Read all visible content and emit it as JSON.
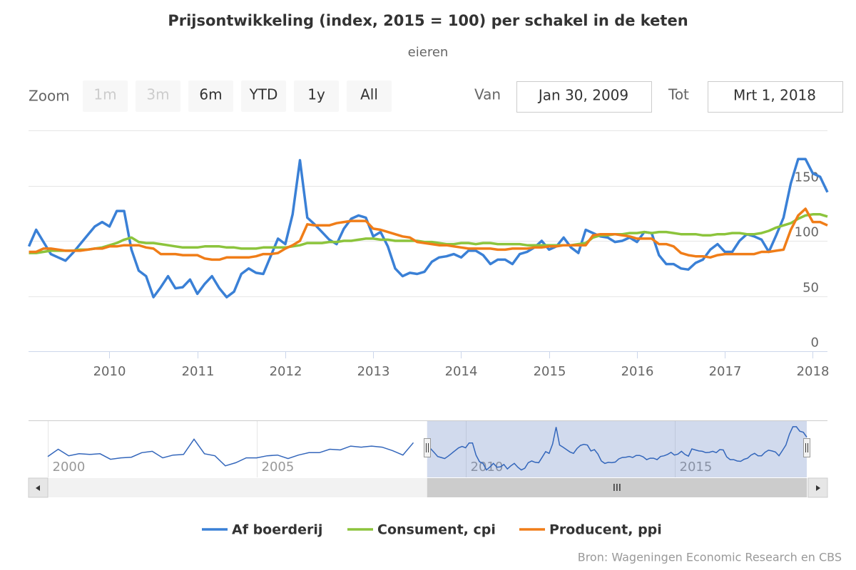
{
  "chart_data": {
    "type": "line",
    "title": "Prijsontwikkeling (index, 2015 = 100) per schakel in de keten",
    "subtitle": "eieren",
    "range_selector": {
      "zoom_label": "Zoom",
      "buttons": [
        {
          "text": "1m",
          "enabled": false
        },
        {
          "text": "3m",
          "enabled": false
        },
        {
          "text": "6m",
          "enabled": true
        },
        {
          "text": "YTD",
          "enabled": true
        },
        {
          "text": "1y",
          "enabled": true
        },
        {
          "text": "All",
          "enabled": true
        }
      ],
      "from_label": "Van",
      "from": "Jan 30, 2009",
      "to_label": "Tot",
      "to": "Mrt 1, 2018"
    },
    "x": [
      "2009-02",
      "2009-03",
      "2009-04",
      "2009-05",
      "2009-06",
      "2009-07",
      "2009-08",
      "2009-09",
      "2009-10",
      "2009-11",
      "2009-12",
      "2010-01",
      "2010-02",
      "2010-03",
      "2010-04",
      "2010-05",
      "2010-06",
      "2010-07",
      "2010-08",
      "2010-09",
      "2010-10",
      "2010-11",
      "2010-12",
      "2011-01",
      "2011-02",
      "2011-03",
      "2011-04",
      "2011-05",
      "2011-06",
      "2011-07",
      "2011-08",
      "2011-09",
      "2011-10",
      "2011-11",
      "2011-12",
      "2012-01",
      "2012-02",
      "2012-03",
      "2012-04",
      "2012-05",
      "2012-06",
      "2012-07",
      "2012-08",
      "2012-09",
      "2012-10",
      "2012-11",
      "2012-12",
      "2013-01",
      "2013-02",
      "2013-03",
      "2013-04",
      "2013-05",
      "2013-06",
      "2013-07",
      "2013-08",
      "2013-09",
      "2013-10",
      "2013-11",
      "2013-12",
      "2014-01",
      "2014-02",
      "2014-03",
      "2014-04",
      "2014-05",
      "2014-06",
      "2014-07",
      "2014-08",
      "2014-09",
      "2014-10",
      "2014-11",
      "2014-12",
      "2015-01",
      "2015-02",
      "2015-03",
      "2015-04",
      "2015-05",
      "2015-06",
      "2015-07",
      "2015-08",
      "2015-09",
      "2015-10",
      "2015-11",
      "2015-12",
      "2016-01",
      "2016-02",
      "2016-03",
      "2016-04",
      "2016-05",
      "2016-06",
      "2016-07",
      "2016-08",
      "2016-09",
      "2016-10",
      "2016-11",
      "2016-12",
      "2017-01",
      "2017-02",
      "2017-03",
      "2017-04",
      "2017-05",
      "2017-06",
      "2017-07",
      "2017-08",
      "2017-09",
      "2017-10",
      "2017-11",
      "2017-12",
      "2018-01",
      "2018-02",
      "2018-03"
    ],
    "series": [
      {
        "name": "Af boerderij",
        "color": "#3a80d6",
        "values": [
          95,
          110,
          99,
          88,
          85,
          82,
          89,
          97,
          105,
          113,
          117,
          113,
          127,
          127,
          92,
          73,
          68,
          49,
          58,
          68,
          57,
          58,
          65,
          52,
          61,
          68,
          57,
          49,
          54,
          70,
          75,
          71,
          70,
          86,
          102,
          97,
          124,
          173,
          121,
          115,
          108,
          101,
          97,
          111,
          120,
          123,
          121,
          104,
          108,
          95,
          75,
          68,
          71,
          70,
          72,
          81,
          85,
          86,
          88,
          85,
          91,
          91,
          87,
          79,
          83,
          83,
          79,
          88,
          90,
          94,
          100,
          92,
          95,
          103,
          94,
          89,
          110,
          107,
          104,
          103,
          99,
          100,
          103,
          99,
          108,
          107,
          87,
          79,
          79,
          75,
          74,
          80,
          83,
          92,
          97,
          90,
          90,
          100,
          106,
          104,
          101,
          90,
          105,
          121,
          152,
          174,
          174,
          161,
          158,
          144
        ]
      },
      {
        "name": "Consument, cpi",
        "color": "#8cc43c",
        "values": [
          89,
          89,
          90,
          91,
          91,
          91,
          91,
          92,
          92,
          93,
          94,
          96,
          98,
          101,
          103,
          99,
          98,
          98,
          97,
          96,
          95,
          94,
          94,
          94,
          95,
          95,
          95,
          94,
          94,
          93,
          93,
          93,
          94,
          94,
          94,
          94,
          95,
          96,
          98,
          98,
          98,
          99,
          99,
          100,
          100,
          101,
          102,
          102,
          101,
          101,
          100,
          100,
          100,
          100,
          99,
          99,
          98,
          97,
          97,
          98,
          98,
          97,
          98,
          98,
          97,
          97,
          97,
          97,
          96,
          96,
          96,
          96,
          96,
          96,
          96,
          97,
          98,
          103,
          105,
          105,
          106,
          106,
          107,
          107,
          108,
          107,
          108,
          108,
          107,
          106,
          106,
          106,
          105,
          105,
          106,
          106,
          107,
          107,
          106,
          106,
          107,
          109,
          112,
          114,
          116,
          120,
          123,
          124,
          124,
          122
        ]
      },
      {
        "name": "Producent, ppi",
        "color": "#f07d18",
        "values": [
          90,
          90,
          93,
          93,
          92,
          91,
          91,
          91,
          92,
          93,
          93,
          95,
          95,
          96,
          96,
          96,
          94,
          93,
          88,
          88,
          88,
          87,
          87,
          87,
          84,
          83,
          83,
          85,
          85,
          85,
          85,
          86,
          88,
          88,
          89,
          93,
          96,
          100,
          115,
          114,
          114,
          114,
          116,
          117,
          118,
          118,
          118,
          111,
          110,
          108,
          106,
          104,
          103,
          99,
          98,
          97,
          96,
          96,
          95,
          94,
          93,
          93,
          93,
          93,
          92,
          92,
          93,
          93,
          93,
          94,
          94,
          95,
          95,
          96,
          96,
          96,
          96,
          105,
          106,
          106,
          106,
          105,
          104,
          102,
          102,
          102,
          97,
          97,
          95,
          89,
          87,
          86,
          86,
          85,
          87,
          88,
          88,
          88,
          88,
          88,
          90,
          90,
          91,
          92,
          110,
          123,
          129,
          117,
          117,
          114
        ]
      }
    ],
    "xlim": [
      "2009-01-30",
      "2018-03-01"
    ],
    "xticks": [
      2010,
      2011,
      2012,
      2013,
      2014,
      2015,
      2016,
      2017,
      2018
    ],
    "ylim": [
      0,
      200
    ],
    "yticks": [
      0,
      50,
      100,
      150
    ],
    "grid": true,
    "navigator": {
      "x": [
        "2000-01",
        "2000-04",
        "2000-07",
        "2000-10",
        "2001-01",
        "2001-04",
        "2001-07",
        "2001-10",
        "2002-01",
        "2002-04",
        "2002-07",
        "2002-10",
        "2003-01",
        "2003-04",
        "2003-07",
        "2003-10",
        "2004-01",
        "2004-04",
        "2004-07",
        "2004-10",
        "2005-01",
        "2005-04",
        "2005-07",
        "2005-10",
        "2006-01",
        "2006-04",
        "2006-07",
        "2006-10",
        "2007-01",
        "2007-04",
        "2007-07",
        "2007-10",
        "2008-01",
        "2008-04",
        "2008-07",
        "2008-10"
      ],
      "values": [
        88,
        109,
        90,
        96,
        94,
        96,
        80,
        84,
        86,
        99,
        103,
        84,
        92,
        94,
        138,
        96,
        90,
        61,
        70,
        84,
        84,
        90,
        92,
        82,
        92,
        99,
        99,
        109,
        107,
        118,
        115,
        118,
        115,
        105,
        92,
        128
      ],
      "xlim": [
        "2000-01",
        "2018-03-01"
      ],
      "ylim": [
        40,
        180
      ],
      "xticks": [
        2000,
        2005,
        2010,
        2015
      ]
    },
    "legend": "bottom",
    "credits": "Bron: Wageningen Economic Research en CBS"
  }
}
